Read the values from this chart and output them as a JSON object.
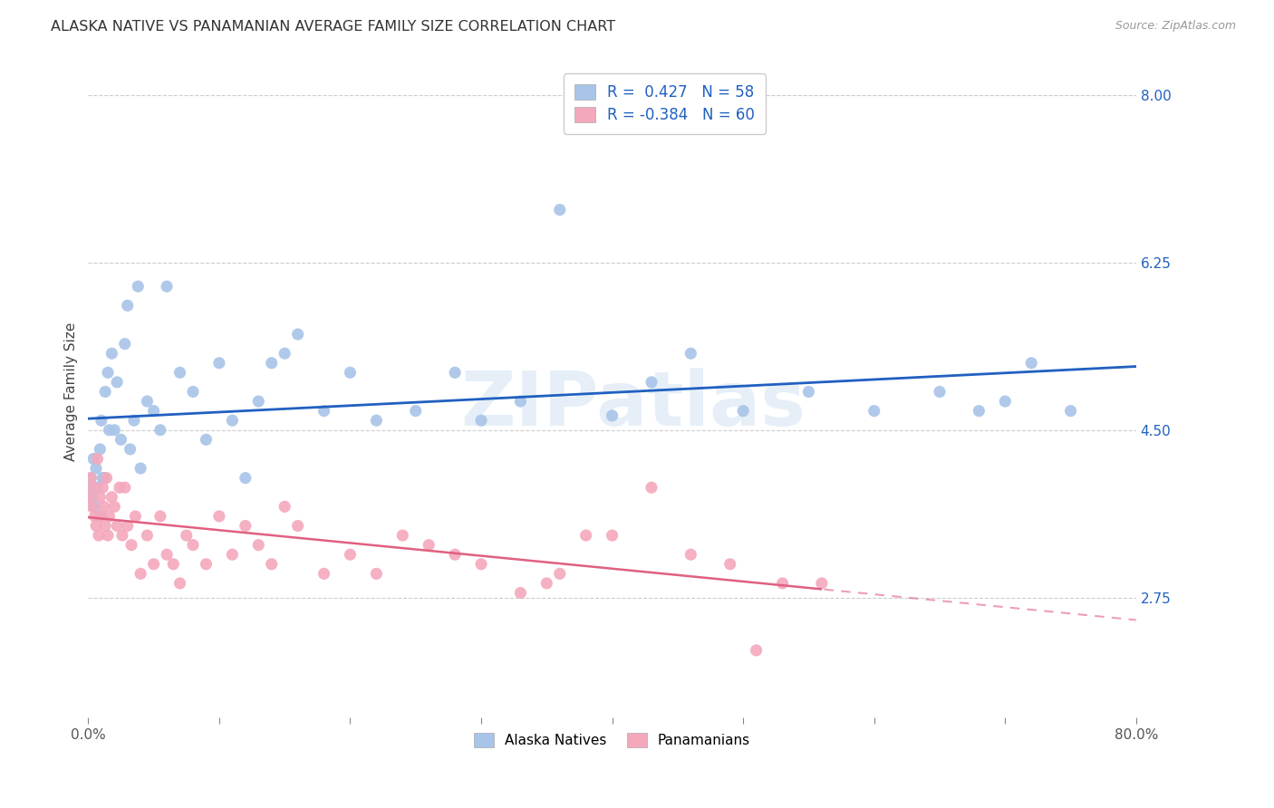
{
  "title": "ALASKA NATIVE VS PANAMANIAN AVERAGE FAMILY SIZE CORRELATION CHART",
  "source": "Source: ZipAtlas.com",
  "ylabel": "Average Family Size",
  "yticks_right": [
    2.75,
    4.5,
    6.25,
    8.0
  ],
  "xmin": 0.0,
  "xmax": 0.8,
  "ymin": 1.5,
  "ymax": 8.3,
  "watermark": "ZIPatlas",
  "legend_blue_r": "0.427",
  "legend_blue_n": "58",
  "legend_pink_r": "-0.384",
  "legend_pink_n": "60",
  "blue_color": "#A8C4E8",
  "pink_color": "#F4A8BC",
  "line_blue": "#2060C0",
  "line_pink": "#E06080",
  "alaska_x": [
    0.001,
    0.002,
    0.003,
    0.004,
    0.005,
    0.006,
    0.007,
    0.008,
    0.009,
    0.01,
    0.011,
    0.012,
    0.013,
    0.015,
    0.016,
    0.018,
    0.02,
    0.022,
    0.025,
    0.028,
    0.03,
    0.032,
    0.035,
    0.038,
    0.04,
    0.045,
    0.05,
    0.055,
    0.06,
    0.07,
    0.08,
    0.09,
    0.1,
    0.11,
    0.12,
    0.13,
    0.14,
    0.15,
    0.16,
    0.18,
    0.2,
    0.22,
    0.25,
    0.28,
    0.3,
    0.33,
    0.36,
    0.4,
    0.43,
    0.46,
    0.5,
    0.55,
    0.6,
    0.65,
    0.7,
    0.75,
    0.72,
    0.68
  ],
  "alaska_y": [
    3.9,
    4.0,
    3.8,
    4.2,
    3.7,
    4.1,
    3.9,
    3.6,
    4.3,
    4.6,
    4.0,
    4.0,
    4.9,
    5.1,
    4.5,
    5.3,
    4.5,
    5.0,
    4.4,
    5.4,
    5.8,
    4.3,
    4.6,
    6.0,
    4.1,
    4.8,
    4.7,
    4.5,
    6.0,
    5.1,
    4.9,
    4.4,
    5.2,
    4.6,
    4.0,
    4.8,
    5.2,
    5.3,
    5.5,
    4.7,
    5.1,
    4.6,
    4.7,
    5.1,
    4.6,
    4.8,
    6.8,
    4.65,
    5.0,
    5.3,
    4.7,
    4.9,
    4.7,
    4.9,
    4.8,
    4.7,
    5.2,
    4.7
  ],
  "panama_x": [
    0.001,
    0.002,
    0.003,
    0.004,
    0.005,
    0.006,
    0.007,
    0.008,
    0.009,
    0.01,
    0.011,
    0.012,
    0.013,
    0.014,
    0.015,
    0.016,
    0.018,
    0.02,
    0.022,
    0.024,
    0.026,
    0.028,
    0.03,
    0.033,
    0.036,
    0.04,
    0.045,
    0.05,
    0.055,
    0.06,
    0.065,
    0.07,
    0.075,
    0.08,
    0.09,
    0.1,
    0.11,
    0.12,
    0.13,
    0.14,
    0.15,
    0.16,
    0.18,
    0.2,
    0.22,
    0.24,
    0.26,
    0.28,
    0.3,
    0.33,
    0.35,
    0.36,
    0.38,
    0.4,
    0.43,
    0.46,
    0.49,
    0.51,
    0.53,
    0.56
  ],
  "panama_y": [
    3.8,
    4.0,
    3.7,
    3.9,
    3.6,
    3.5,
    4.2,
    3.4,
    3.8,
    3.6,
    3.9,
    3.7,
    3.5,
    4.0,
    3.4,
    3.6,
    3.8,
    3.7,
    3.5,
    3.9,
    3.4,
    3.9,
    3.5,
    3.3,
    3.6,
    3.0,
    3.4,
    3.1,
    3.6,
    3.2,
    3.1,
    2.9,
    3.4,
    3.3,
    3.1,
    3.6,
    3.2,
    3.5,
    3.3,
    3.1,
    3.7,
    3.5,
    3.0,
    3.2,
    3.0,
    3.4,
    3.3,
    3.2,
    3.1,
    2.8,
    2.9,
    3.0,
    3.4,
    3.4,
    3.9,
    3.2,
    3.1,
    2.2,
    2.9,
    2.9
  ]
}
